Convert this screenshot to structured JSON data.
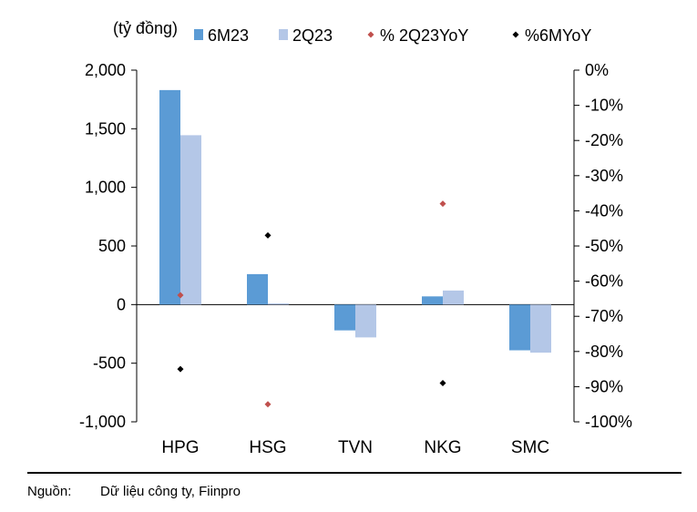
{
  "chart_data": {
    "type": "bar",
    "unit_label": "(tỷ đồng)",
    "categories": [
      "HPG",
      "HSG",
      "TVN",
      "NKG",
      "SMC"
    ],
    "series": [
      {
        "name": "6M23",
        "kind": "bar",
        "axis": "left",
        "color": "#5b9bd5",
        "values": [
          1830,
          260,
          -220,
          70,
          -390
        ]
      },
      {
        "name": "2Q23",
        "kind": "bar",
        "axis": "left",
        "color": "#b4c7e7",
        "values": [
          1445,
          10,
          -280,
          120,
          -410
        ]
      },
      {
        "name": "% 2Q23YoY",
        "kind": "marker",
        "axis": "right",
        "color": "#c0504d",
        "values": [
          -64,
          -95,
          null,
          -38,
          null
        ]
      },
      {
        "name": "%6MYoY",
        "kind": "marker",
        "axis": "right",
        "color": "#000000",
        "values": [
          -85,
          -47,
          null,
          -89,
          null
        ]
      }
    ],
    "y_left": {
      "range": [
        -1000,
        2000
      ],
      "ticks": [
        2000,
        1500,
        1000,
        500,
        0,
        -500,
        -1000
      ],
      "tick_labels": [
        "2,000",
        "1,500",
        "1,000",
        "500",
        "0",
        "-500",
        "-1,000"
      ]
    },
    "y_right": {
      "range": [
        -100,
        0
      ],
      "ticks": [
        0,
        -10,
        -20,
        -30,
        -40,
        -50,
        -60,
        -70,
        -80,
        -90,
        -100
      ],
      "tick_labels": [
        "0%",
        "-10%",
        "-20%",
        "-30%",
        "-40%",
        "-50%",
        "-60%",
        "-70%",
        "-80%",
        "-90%",
        "-100%"
      ]
    },
    "grid": false,
    "legend_position": "top"
  },
  "source": {
    "label": "Nguồn:",
    "text": "Dữ liệu công ty, Fiinpro"
  }
}
